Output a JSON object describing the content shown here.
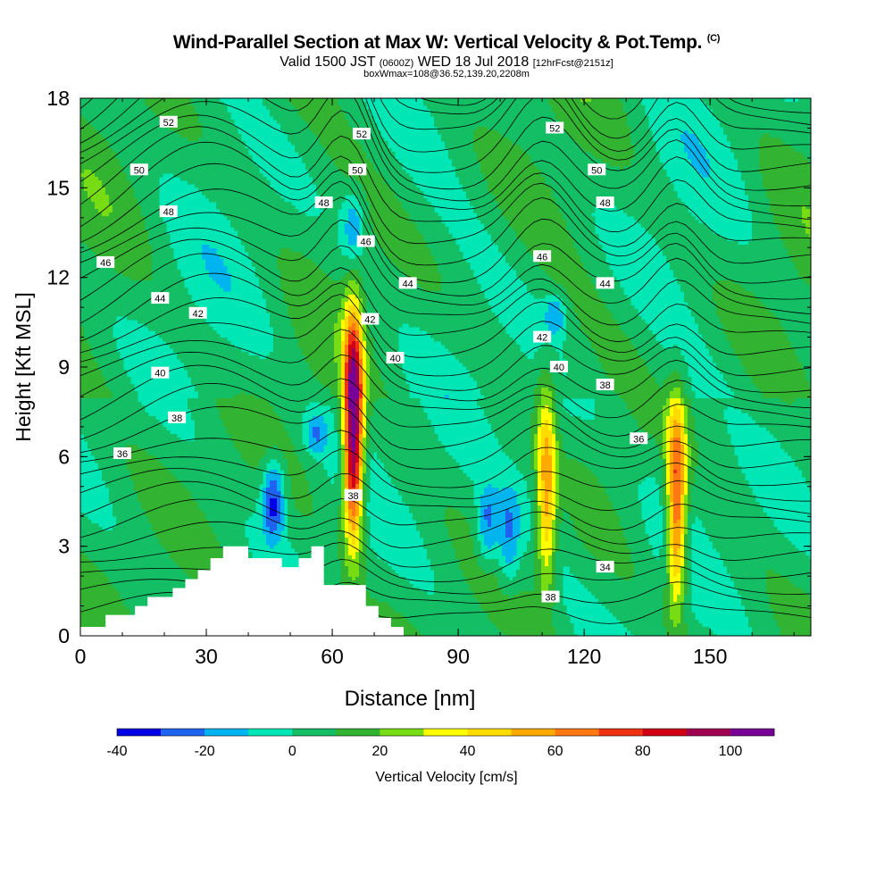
{
  "header": {
    "title": "Wind-Parallel Section at Max W: Vertical Velocity & Pot.Temp.",
    "title_mark": "(C)",
    "valid_prefix": "Valid 1500 JST",
    "valid_zulu": "(0600Z)",
    "valid_date": "WED 18 Jul 2018",
    "forecast_info": "[12hrFcst@2151z]",
    "box_info": "boxWmax=108@36.52,139.20,2208m"
  },
  "chart_data": {
    "type": "heatmap",
    "xlabel": "Distance [nm]",
    "ylabel": "Height [Kft MSL]",
    "xlim": [
      0,
      174
    ],
    "ylim": [
      0,
      18
    ],
    "x_ticks": [
      0,
      30,
      60,
      90,
      120,
      150
    ],
    "y_ticks": [
      0,
      3,
      6,
      9,
      12,
      15,
      18
    ],
    "colorbar": {
      "title": "Vertical Velocity [cm/s]",
      "tick_labels": [
        -40,
        -20,
        0,
        20,
        40,
        60,
        80,
        100
      ],
      "levels": [
        -40,
        -30,
        -20,
        -10,
        0,
        10,
        20,
        30,
        40,
        50,
        60,
        70,
        80,
        90,
        100,
        110
      ],
      "colors": [
        "#0000e6",
        "#1e64f0",
        "#00b4f0",
        "#00e6b4",
        "#14be64",
        "#32b432",
        "#78dc14",
        "#ffff00",
        "#ffdc00",
        "#ffaa00",
        "#ff7814",
        "#f03214",
        "#d20014",
        "#a00050",
        "#780096"
      ]
    },
    "velocity_features": [
      {
        "kind": "updraft",
        "x": 65,
        "y_bottom": 3,
        "y_top": 11,
        "peak": 108
      },
      {
        "kind": "updraft",
        "x": 111,
        "y_bottom": 1.3,
        "y_top": 8.5,
        "peak": 50
      },
      {
        "kind": "updraft",
        "x": 142,
        "y_bottom": 0.8,
        "y_top": 8,
        "peak": 70
      },
      {
        "kind": "downdraft",
        "x": 46,
        "y_bottom": 3.2,
        "y_top": 6,
        "peak": -40
      },
      {
        "kind": "downdraft",
        "x": 97,
        "y_bottom": 2.3,
        "y_top": 5,
        "peak": -28
      },
      {
        "kind": "downdraft",
        "x": 102,
        "y_bottom": 1.5,
        "y_top": 5,
        "peak": -25
      },
      {
        "kind": "downdraft",
        "x": 56,
        "y_bottom": 6,
        "y_top": 7.5,
        "peak": -22
      },
      {
        "kind": "downdraft",
        "x": 65,
        "y_bottom": 12.5,
        "y_top": 15,
        "peak": -22
      },
      {
        "kind": "downdraft",
        "x": 113,
        "y_bottom": 10,
        "y_top": 11.5,
        "peak": -22
      }
    ],
    "terrain": {
      "x": [
        0,
        6,
        6,
        13,
        13,
        16,
        16,
        22,
        22,
        25,
        25,
        28,
        28,
        31,
        31,
        34,
        34,
        40,
        40,
        48,
        48,
        52,
        52,
        55,
        55,
        58,
        58,
        68,
        68,
        71,
        71,
        74,
        74,
        77,
        77,
        80
      ],
      "y": [
        0.3,
        0.3,
        0.7,
        0.7,
        1.0,
        1.0,
        1.3,
        1.3,
        1.6,
        1.6,
        1.9,
        1.9,
        2.2,
        2.2,
        2.6,
        2.6,
        3.0,
        3.0,
        2.6,
        2.6,
        2.3,
        2.3,
        2.6,
        2.6,
        3.0,
        3.0,
        1.7,
        1.7,
        1.0,
        1.0,
        0.6,
        0.6,
        0.3,
        0.3,
        0.0,
        0.0
      ]
    },
    "theta_contours": [
      {
        "level": 34,
        "label": "34"
      },
      {
        "level": 36,
        "label": "36"
      },
      {
        "level": 38,
        "label": "38"
      },
      {
        "level": 40,
        "label": "40"
      },
      {
        "level": 42,
        "label": "42"
      },
      {
        "level": 44,
        "label": "44"
      },
      {
        "level": 46,
        "label": "46"
      },
      {
        "level": 48,
        "label": "48"
      },
      {
        "level": 50,
        "label": "50"
      },
      {
        "level": 52,
        "label": "52"
      }
    ]
  }
}
